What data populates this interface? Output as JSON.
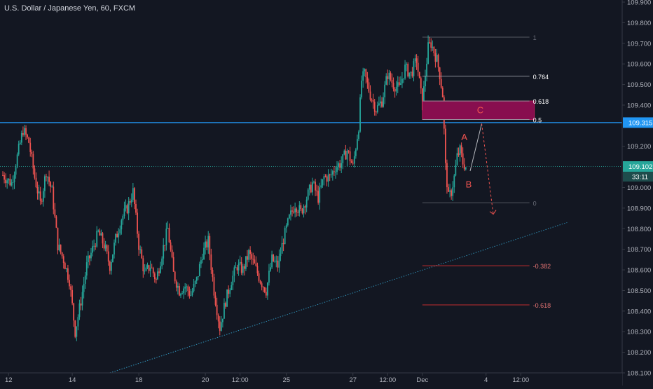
{
  "header": {
    "symbol_title": "U.S. Dollar / Japanese Yen, 60, FXCM"
  },
  "colors": {
    "background": "#131722",
    "axis_line": "#363a45",
    "bull": "#26a69a",
    "bear": "#ef5350",
    "blue_level": "#2196f3",
    "dotted_trend": "#2f8fb5",
    "fib_level": "#9598a1",
    "fib_negative": "#d32f2f",
    "zone_fill": "#880e4f",
    "wave_label": "#ef5350",
    "price_label_blue": "#2196f3",
    "price_label_current": "#26a69a"
  },
  "chart_data": {
    "type": "candlestick",
    "title": "U.S. Dollar / Japanese Yen, 60, FXCM",
    "xlabel": "",
    "ylabel": "",
    "ylim": [
      108.1,
      109.9
    ],
    "y_ticks": [
      "109.900",
      "109.800",
      "109.700",
      "109.600",
      "109.500",
      "109.400",
      "109.200",
      "109.000",
      "108.900",
      "108.800",
      "108.700",
      "108.600",
      "108.500",
      "108.400",
      "108.300",
      "108.200",
      "108.100"
    ],
    "x_ticks": [
      {
        "label": "12",
        "index": 2
      },
      {
        "label": "14",
        "index": 24
      },
      {
        "label": "18",
        "index": 47
      },
      {
        "label": "20",
        "index": 70
      },
      {
        "label": "12:00",
        "index": 82
      },
      {
        "label": "25",
        "index": 98
      },
      {
        "label": "27",
        "index": 121
      },
      {
        "label": "12:00",
        "index": 133
      },
      {
        "label": "Dec",
        "index": 145
      },
      {
        "label": "4",
        "index": 167
      },
      {
        "label": "12:00",
        "index": 179
      }
    ],
    "price_path": [
      [
        0,
        109.06
      ],
      [
        3,
        109.02
      ],
      [
        5,
        109.15
      ],
      [
        7,
        109.28
      ],
      [
        9,
        109.22
      ],
      [
        11,
        109.05
      ],
      [
        13,
        108.92
      ],
      [
        15,
        109.08
      ],
      [
        17,
        108.98
      ],
      [
        19,
        108.72
      ],
      [
        21,
        108.65
      ],
      [
        23,
        108.55
      ],
      [
        25,
        108.3
      ],
      [
        27,
        108.45
      ],
      [
        29,
        108.62
      ],
      [
        31,
        108.7
      ],
      [
        33,
        108.78
      ],
      [
        35,
        108.72
      ],
      [
        37,
        108.62
      ],
      [
        39,
        108.75
      ],
      [
        41,
        108.85
      ],
      [
        43,
        108.9
      ],
      [
        45,
        108.98
      ],
      [
        47,
        108.72
      ],
      [
        49,
        108.58
      ],
      [
        51,
        108.62
      ],
      [
        53,
        108.55
      ],
      [
        55,
        108.68
      ],
      [
        57,
        108.8
      ],
      [
        59,
        108.58
      ],
      [
        61,
        108.5
      ],
      [
        63,
        108.52
      ],
      [
        65,
        108.48
      ],
      [
        67,
        108.55
      ],
      [
        69,
        108.68
      ],
      [
        71,
        108.74
      ],
      [
        73,
        108.5
      ],
      [
        75,
        108.32
      ],
      [
        77,
        108.45
      ],
      [
        79,
        108.55
      ],
      [
        81,
        108.62
      ],
      [
        83,
        108.6
      ],
      [
        85,
        108.68
      ],
      [
        87,
        108.62
      ],
      [
        89,
        108.55
      ],
      [
        91,
        108.5
      ],
      [
        93,
        108.65
      ],
      [
        95,
        108.62
      ],
      [
        97,
        108.75
      ],
      [
        99,
        108.85
      ],
      [
        101,
        108.92
      ],
      [
        103,
        108.88
      ],
      [
        105,
        108.95
      ],
      [
        107,
        109.02
      ],
      [
        109,
        108.95
      ],
      [
        111,
        109.05
      ],
      [
        113,
        109.05
      ],
      [
        115,
        109.1
      ],
      [
        117,
        109.12
      ],
      [
        119,
        109.18
      ],
      [
        121,
        109.1
      ],
      [
        123,
        109.3
      ],
      [
        124,
        109.52
      ],
      [
        125,
        109.55
      ],
      [
        127,
        109.45
      ],
      [
        129,
        109.38
      ],
      [
        131,
        109.42
      ],
      [
        133,
        109.55
      ],
      [
        135,
        109.5
      ],
      [
        137,
        109.48
      ],
      [
        139,
        109.58
      ],
      [
        141,
        109.55
      ],
      [
        143,
        109.62
      ],
      [
        145,
        109.4
      ],
      [
        146,
        109.55
      ],
      [
        147,
        109.68
      ],
      [
        148,
        109.7
      ],
      [
        149,
        109.66
      ],
      [
        150,
        109.62
      ],
      [
        151,
        109.55
      ],
      [
        152,
        109.45
      ],
      [
        153,
        109.1
      ],
      [
        154,
        108.95
      ],
      [
        155,
        108.98
      ],
      [
        156,
        109.05
      ],
      [
        157,
        109.15
      ],
      [
        158,
        109.18
      ],
      [
        159,
        109.12
      ],
      [
        160,
        109.1
      ]
    ],
    "wave_labels": [
      {
        "label": "A",
        "index": 159.5,
        "price": 109.23
      },
      {
        "label": "B",
        "index": 161.0,
        "price": 109.0
      },
      {
        "label": "C",
        "index": 165.0,
        "price": 109.36
      }
    ],
    "projection_path": [
      [
        161.5,
        109.08
      ],
      [
        165.5,
        109.31
      ],
      [
        169.5,
        108.87
      ]
    ],
    "fib_levels": [
      {
        "label": "1",
        "price": 109.73,
        "negative": false
      },
      {
        "label": "0.764",
        "price": 109.54,
        "negative": false
      },
      {
        "label": "0.618",
        "price": 109.42,
        "negative": false
      },
      {
        "label": "0.5",
        "price": 109.33,
        "negative": false
      },
      {
        "label": "0",
        "price": 108.925,
        "negative": false
      },
      {
        "label": "-0.382",
        "price": 108.62,
        "negative": true
      },
      {
        "label": "-0.618",
        "price": 108.43,
        "negative": true
      }
    ],
    "fib_range": [
      145,
      182
    ],
    "zone": {
      "price_top": 109.42,
      "price_bottom": 109.33
    },
    "horizontal_levels": [
      {
        "price": 109.315,
        "label": "109.315",
        "style": "solid"
      },
      {
        "price": 109.102,
        "label": "109.102",
        "style": "dotted",
        "timer": "33:11"
      }
    ],
    "trendline": [
      [
        37,
        108.1
      ],
      [
        195,
        108.83
      ]
    ]
  }
}
